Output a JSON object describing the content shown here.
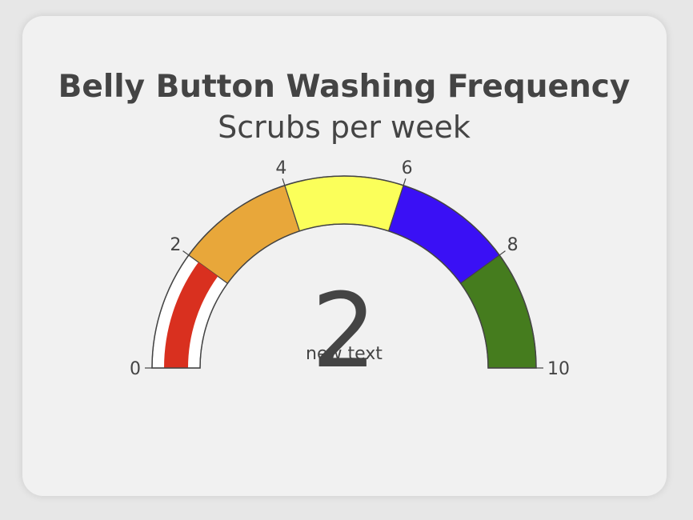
{
  "chart_data": {
    "type": "gauge",
    "title": "Belly Button Washing Frequency",
    "subtitle": "Scrubs per week",
    "value": 2,
    "value_caption": "new text",
    "range": [
      0,
      10
    ],
    "tick_labels": [
      "0",
      "2",
      "4",
      "6",
      "8",
      "10"
    ],
    "tick_values": [
      0,
      2,
      4,
      6,
      8,
      10
    ],
    "steps": [
      {
        "range": [
          0,
          2
        ],
        "color": "#ffffff"
      },
      {
        "range": [
          2,
          4
        ],
        "color": "#e8a73a"
      },
      {
        "range": [
          4,
          6
        ],
        "color": "#fbff5a"
      },
      {
        "range": [
          6,
          8
        ],
        "color": "#3a10f5"
      },
      {
        "range": [
          8,
          10
        ],
        "color": "#457c1e"
      }
    ],
    "bar": {
      "value": 2,
      "color": "#d9301f"
    },
    "colors": {
      "background": "#f1f1f1",
      "text": "#444444",
      "outline": "#444444"
    }
  }
}
